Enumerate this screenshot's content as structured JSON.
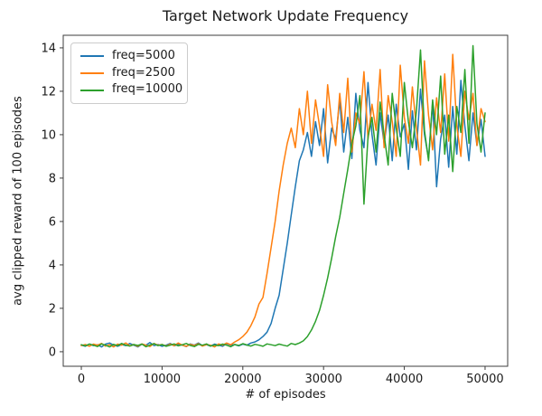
{
  "chart_data": {
    "type": "line",
    "title": "Target Network Update Frequency",
    "xlabel": "# of episodes",
    "ylabel": "avg clipped reward of 100 episodes",
    "xticks": [
      0,
      10000,
      20000,
      30000,
      40000,
      50000
    ],
    "yticks": [
      0,
      2,
      4,
      6,
      8,
      10,
      12,
      14
    ],
    "xlim": [
      -2240,
      52800
    ],
    "ylim": [
      -0.67,
      14.58
    ],
    "grid": false,
    "legend_position": "upper left",
    "x_start": 0,
    "x_step": 500,
    "series": [
      {
        "name": "freq=5000",
        "color": "#1f77b4",
        "values": [
          0.3,
          0.25,
          0.35,
          0.28,
          0.32,
          0.22,
          0.35,
          0.4,
          0.3,
          0.25,
          0.33,
          0.28,
          0.38,
          0.3,
          0.22,
          0.35,
          0.3,
          0.42,
          0.28,
          0.33,
          0.25,
          0.3,
          0.38,
          0.27,
          0.35,
          0.3,
          0.24,
          0.36,
          0.3,
          0.4,
          0.28,
          0.32,
          0.26,
          0.35,
          0.3,
          0.25,
          0.38,
          0.3,
          0.33,
          0.27,
          0.35,
          0.3,
          0.4,
          0.45,
          0.55,
          0.7,
          0.9,
          1.3,
          2.0,
          2.6,
          3.8,
          5.0,
          6.3,
          7.6,
          8.8,
          9.3,
          10.1,
          9.0,
          10.6,
          9.5,
          11.2,
          8.7,
          10.3,
          9.8,
          11.6,
          9.2,
          10.8,
          8.9,
          11.9,
          10.2,
          9.4,
          12.4,
          10.0,
          8.6,
          11.0,
          9.6,
          10.9,
          8.8,
          11.4,
          9.9,
          10.5,
          8.4,
          11.1,
          9.3,
          12.1,
          10.0,
          8.9,
          11.5,
          7.6,
          9.8,
          10.9,
          8.5,
          11.3,
          9.1,
          12.5,
          10.4,
          8.8,
          11.0,
          9.5,
          10.7,
          9.0
        ]
      },
      {
        "name": "freq=2500",
        "color": "#ff7f0e",
        "values": [
          0.28,
          0.33,
          0.25,
          0.35,
          0.3,
          0.38,
          0.26,
          0.32,
          0.22,
          0.35,
          0.3,
          0.4,
          0.27,
          0.33,
          0.25,
          0.36,
          0.3,
          0.24,
          0.38,
          0.3,
          0.33,
          0.26,
          0.35,
          0.28,
          0.4,
          0.3,
          0.25,
          0.34,
          0.29,
          0.37,
          0.26,
          0.33,
          0.3,
          0.22,
          0.36,
          0.3,
          0.4,
          0.32,
          0.45,
          0.55,
          0.7,
          0.9,
          1.2,
          1.6,
          2.2,
          2.5,
          3.6,
          4.8,
          6.0,
          7.4,
          8.6,
          9.6,
          10.3,
          9.4,
          11.2,
          10.0,
          12.0,
          9.6,
          11.6,
          10.4,
          9.0,
          12.3,
          10.6,
          9.5,
          11.9,
          10.1,
          12.6,
          9.2,
          11.0,
          10.5,
          12.9,
          9.8,
          11.4,
          10.2,
          13.0,
          9.4,
          11.8,
          10.6,
          9.0,
          13.2,
          10.8,
          9.6,
          12.2,
          10.3,
          8.6,
          13.4,
          10.9,
          9.3,
          11.7,
          10.1,
          12.8,
          9.7,
          13.7,
          10.4,
          9.0,
          12.0,
          10.7,
          11.9,
          9.5,
          11.2,
          10.6
        ]
      },
      {
        "name": "freq=10000",
        "color": "#2ca02c",
        "values": [
          0.32,
          0.27,
          0.35,
          0.3,
          0.24,
          0.36,
          0.3,
          0.22,
          0.34,
          0.28,
          0.38,
          0.3,
          0.26,
          0.33,
          0.29,
          0.35,
          0.23,
          0.31,
          0.37,
          0.28,
          0.33,
          0.25,
          0.3,
          0.36,
          0.27,
          0.32,
          0.38,
          0.29,
          0.24,
          0.34,
          0.3,
          0.36,
          0.26,
          0.31,
          0.28,
          0.35,
          0.3,
          0.23,
          0.33,
          0.29,
          0.37,
          0.31,
          0.26,
          0.34,
          0.3,
          0.25,
          0.36,
          0.32,
          0.28,
          0.35,
          0.3,
          0.26,
          0.38,
          0.33,
          0.4,
          0.5,
          0.7,
          1.0,
          1.4,
          1.9,
          2.6,
          3.4,
          4.3,
          5.3,
          6.2,
          7.3,
          8.4,
          9.6,
          10.4,
          11.8,
          6.8,
          9.9,
          10.8,
          9.2,
          11.5,
          10.0,
          8.6,
          11.9,
          10.3,
          9.0,
          12.4,
          10.6,
          9.4,
          11.1,
          13.9,
          10.2,
          8.8,
          11.6,
          10.0,
          12.7,
          9.1,
          10.9,
          8.3,
          11.3,
          10.1,
          13.0,
          9.6,
          14.1,
          10.5,
          9.2,
          11.0
        ]
      }
    ]
  }
}
